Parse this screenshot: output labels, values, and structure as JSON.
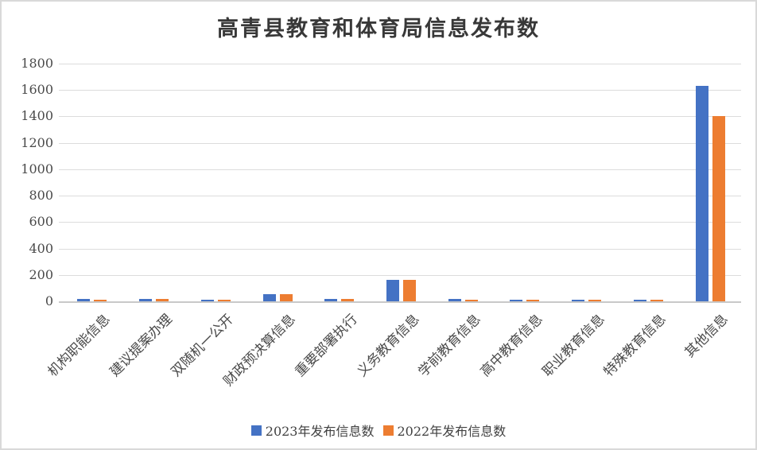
{
  "title": "高青县教育和体育局信息发布数",
  "colors": {
    "series_2023": "#4472C4",
    "series_2022": "#ED7D31",
    "gridline": "#DCDCDC",
    "axis_line": "#C9C9C9",
    "label_text": "#4A4A4A",
    "title_text": "#383838"
  },
  "chart_data": {
    "type": "bar",
    "title": "高青县教育和体育局信息发布数",
    "categories": [
      "机构职能信息",
      "建议提案办理",
      "双随机一公开",
      "财政预决算信息",
      "重要部署执行",
      "义务教育信息",
      "学前教育信息",
      "高中教育信息",
      "职业教育信息",
      "特殊教育信息",
      "其他信息"
    ],
    "series": [
      {
        "name": "2023年发布信息数",
        "color": "#4472C4",
        "values": [
          18,
          20,
          12,
          55,
          20,
          165,
          20,
          12,
          12,
          12,
          1630
        ]
      },
      {
        "name": "2022年发布信息数",
        "color": "#ED7D31",
        "values": [
          10,
          18,
          10,
          52,
          18,
          165,
          10,
          10,
          12,
          10,
          1400
        ]
      }
    ],
    "xlabel": "",
    "ylabel": "",
    "ylim": [
      0,
      1800
    ],
    "ytick_step": 200,
    "grid": true,
    "legend_position": "bottom",
    "legend": [
      "2023年发布信息数",
      "2022年发布信息数"
    ]
  }
}
